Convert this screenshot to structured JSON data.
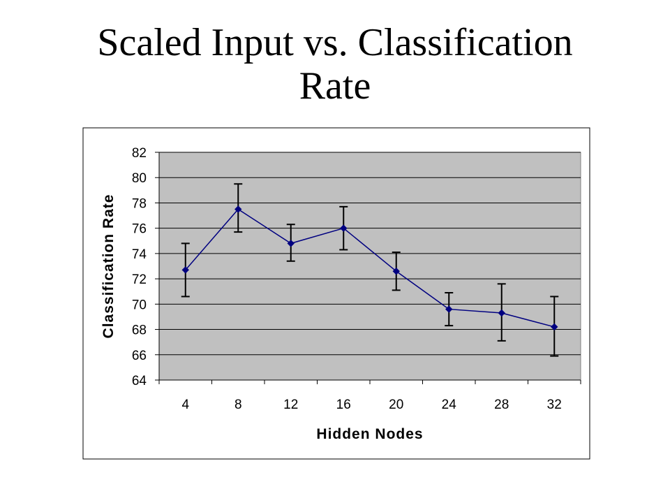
{
  "title": {
    "line1": "Scaled Input vs. Classification",
    "line2": "Rate"
  },
  "chart_data": {
    "type": "line",
    "xlabel": "Hidden Nodes",
    "ylabel": "Classification Rate",
    "categories": [
      "4",
      "8",
      "12",
      "16",
      "20",
      "24",
      "28",
      "32"
    ],
    "series": [
      {
        "values": [
          72.7,
          77.5,
          74.8,
          76.0,
          72.6,
          69.6,
          69.3,
          68.2
        ],
        "error_low": [
          70.6,
          75.7,
          73.4,
          74.3,
          71.1,
          68.3,
          67.1,
          65.9
        ],
        "error_high": [
          74.8,
          79.5,
          76.3,
          77.7,
          74.1,
          70.9,
          71.6,
          70.6
        ],
        "color": "#000080"
      }
    ],
    "ylim": [
      64,
      82
    ],
    "yticks": [
      "64",
      "66",
      "68",
      "70",
      "72",
      "74",
      "76",
      "78",
      "80",
      "82"
    ],
    "grid": true,
    "plot_background": "#c0c0c0",
    "legend": false
  }
}
